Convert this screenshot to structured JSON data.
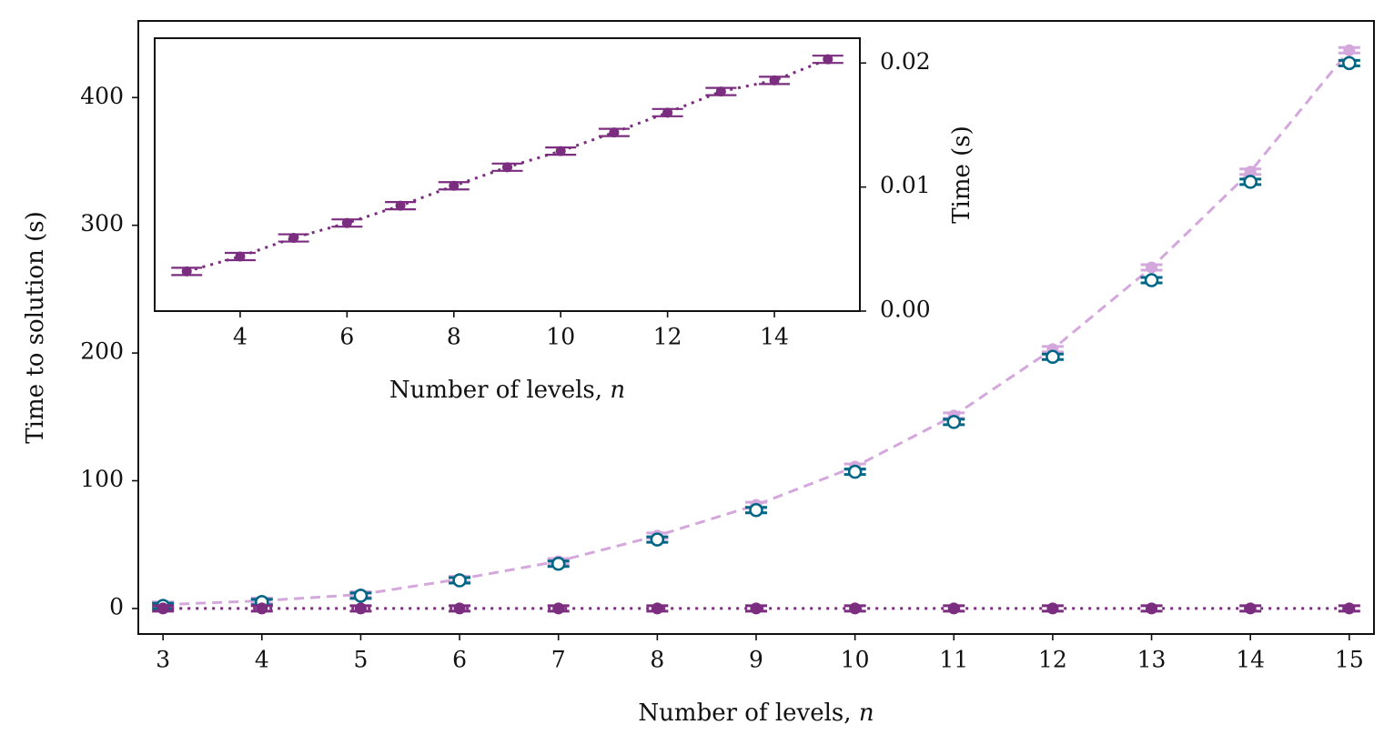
{
  "chart_data": [
    {
      "type": "line",
      "role": "main",
      "title": "",
      "xlabel": "Number of levels, n",
      "ylabel": "Time to solution (s)",
      "xlim": [
        2.75,
        15.25
      ],
      "ylim": [
        -20,
        460
      ],
      "xticks": [
        3,
        4,
        5,
        6,
        7,
        8,
        9,
        10,
        11,
        12,
        13,
        14,
        15
      ],
      "yticks": [
        0,
        100,
        200,
        300,
        400
      ],
      "grid": false,
      "series": [
        {
          "color": "#d4a8dc",
          "marker": "filled-circle",
          "linestyle": "dashed",
          "x": [
            3,
            4,
            5,
            6,
            7,
            8,
            9,
            10,
            11,
            12,
            13,
            14,
            15
          ],
          "y": [
            3,
            6,
            11,
            23,
            37,
            57,
            81,
            111,
            151,
            203,
            267,
            342,
            437
          ]
        },
        {
          "color": "#006685",
          "marker": "open-circle",
          "linestyle": "none",
          "x": [
            3,
            4,
            5,
            6,
            7,
            8,
            9,
            10,
            11,
            12,
            13,
            14,
            15
          ],
          "y": [
            2,
            5,
            10,
            22,
            35,
            54,
            77,
            107,
            146,
            197,
            257,
            334,
            427
          ]
        },
        {
          "color": "#7b2d7f",
          "marker": "filled-circle",
          "linestyle": "dotted",
          "x": [
            3,
            4,
            5,
            6,
            7,
            8,
            9,
            10,
            11,
            12,
            13,
            14,
            15
          ],
          "y": [
            0.003,
            0.004,
            0.006,
            0.007,
            0.009,
            0.01,
            0.012,
            0.013,
            0.015,
            0.016,
            0.018,
            0.019,
            0.02
          ]
        }
      ]
    },
    {
      "type": "line",
      "role": "inset",
      "title": "",
      "xlabel": "Number of levels, n",
      "ylabel": "Time (s)",
      "xlim": [
        2.4,
        15.6
      ],
      "ylim": [
        0,
        0.022
      ],
      "xticks": [
        4,
        6,
        8,
        10,
        12,
        14
      ],
      "yticks": [
        0.0,
        0.01,
        0.02
      ],
      "ytick_labels": [
        "0.00",
        "0.01",
        "0.02"
      ],
      "yaxis_side": "right",
      "grid": false,
      "series": [
        {
          "color": "#7b2d7f",
          "marker": "filled-circle",
          "linestyle": "dotted",
          "x": [
            3,
            4,
            5,
            6,
            7,
            8,
            9,
            10,
            11,
            12,
            13,
            14,
            15
          ],
          "y": [
            0.0032,
            0.0044,
            0.0059,
            0.0071,
            0.0085,
            0.0101,
            0.0116,
            0.0129,
            0.0144,
            0.016,
            0.0177,
            0.0186,
            0.0203
          ]
        }
      ]
    }
  ]
}
